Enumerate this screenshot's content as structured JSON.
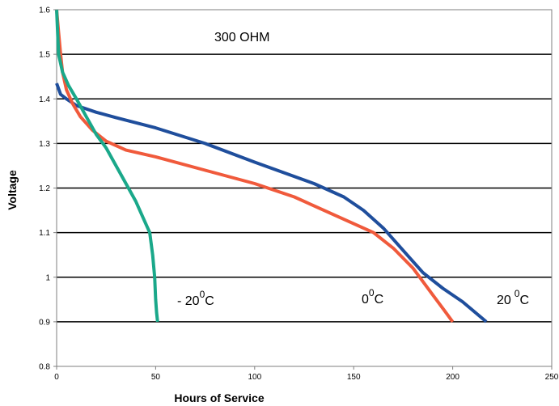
{
  "chart_data": {
    "type": "line",
    "title": "",
    "xlabel": "Hours of Service",
    "ylabel": "Voltage",
    "xlim": [
      0,
      250
    ],
    "ylim": [
      0.8,
      1.6
    ],
    "x_ticks": [
      "0",
      "50",
      "100",
      "150",
      "200",
      "250"
    ],
    "y_ticks": [
      "0.8",
      "0.9",
      "1",
      "1.1",
      "1.2",
      "1.3",
      "1.4",
      "1.5",
      "1.6"
    ],
    "grid": "horizontal",
    "colors": {
      "grid": "#000000",
      "border": "#7f7f7f"
    },
    "annotations": {
      "load": "300 OHM",
      "cold_prefix": "- 20",
      "cold_sup": "0",
      "cold_suffix": "C",
      "zero_prefix": "0",
      "zero_sup": "0",
      "zero_suffix": "C",
      "warm_prefix": "20",
      "warm_sup": "0",
      "warm_suffix": "C"
    },
    "series": [
      {
        "color": "#1f4e9c",
        "x": [
          0,
          2,
          5,
          10,
          20,
          30,
          50,
          75,
          100,
          130,
          145,
          155,
          165,
          175,
          185,
          195,
          205,
          217
        ],
        "y": [
          1.435,
          1.41,
          1.4,
          1.385,
          1.37,
          1.358,
          1.335,
          1.3,
          1.258,
          1.21,
          1.18,
          1.15,
          1.11,
          1.06,
          1.01,
          0.975,
          0.945,
          0.9
        ]
      },
      {
        "color": "#f05a3c",
        "x": [
          0,
          1,
          2,
          3,
          5,
          8,
          12,
          18,
          25,
          35,
          50,
          75,
          100,
          120,
          140,
          160,
          170,
          180,
          185,
          190,
          195,
          200
        ],
        "y": [
          1.6,
          1.55,
          1.5,
          1.46,
          1.42,
          1.39,
          1.36,
          1.33,
          1.305,
          1.285,
          1.27,
          1.24,
          1.21,
          1.18,
          1.14,
          1.1,
          1.065,
          1.02,
          0.99,
          0.96,
          0.93,
          0.9
        ]
      },
      {
        "color": "#1aa88a",
        "x": [
          0,
          0.5,
          1,
          3,
          6,
          10,
          15,
          20,
          25,
          30,
          35,
          40,
          44,
          47,
          48.5,
          49.5,
          50,
          50.5,
          51
        ],
        "y": [
          1.6,
          1.55,
          1.5,
          1.46,
          1.43,
          1.4,
          1.36,
          1.32,
          1.29,
          1.25,
          1.21,
          1.17,
          1.13,
          1.1,
          1.05,
          1.0,
          0.95,
          0.92,
          0.9
        ]
      }
    ]
  }
}
